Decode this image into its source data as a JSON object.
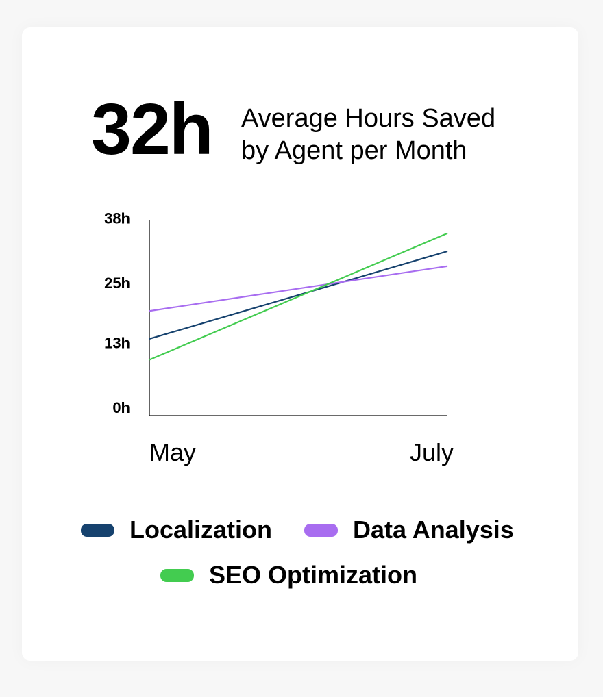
{
  "headline": {
    "value": "32h",
    "label": "Average Hours Saved by Agent per Month"
  },
  "chart_data": {
    "type": "line",
    "title": "",
    "xlabel": "",
    "ylabel": "",
    "categories": [
      "May",
      "July"
    ],
    "x_tick_labels": [
      "May",
      "July"
    ],
    "y_tick_values": [
      0,
      13,
      25,
      38
    ],
    "y_tick_labels": [
      "0h",
      "13h",
      "25h",
      "38h"
    ],
    "ylim": [
      0,
      40
    ],
    "grid": false,
    "legend_position": "bottom",
    "series": [
      {
        "name": "Localization",
        "color": "#16426e",
        "values": [
          15.4,
          33.0
        ]
      },
      {
        "name": "Data Analysis",
        "color": "#a86df0",
        "values": [
          21.0,
          30.0
        ]
      },
      {
        "name": "SEO Optimization",
        "color": "#43cc50",
        "values": [
          11.2,
          36.6
        ]
      }
    ]
  }
}
